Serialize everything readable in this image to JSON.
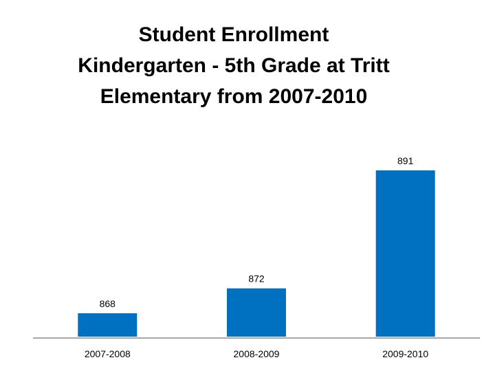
{
  "chart_data": {
    "type": "bar",
    "title": "Student Enrollment\nKindergarten - 5th Grade at Tritt\nElementary from 2007-2010",
    "categories": [
      "2007-2008",
      "2008-2009",
      "2009-2010"
    ],
    "values": [
      868,
      872,
      891
    ],
    "data_labels": [
      "868",
      "872",
      "891"
    ],
    "xlabel": "",
    "ylabel": "",
    "ylim": [
      864,
      892
    ],
    "grid": false,
    "legend": "none",
    "colors": {
      "bar": "#0070C0",
      "axis": "#A6A6A6"
    }
  }
}
